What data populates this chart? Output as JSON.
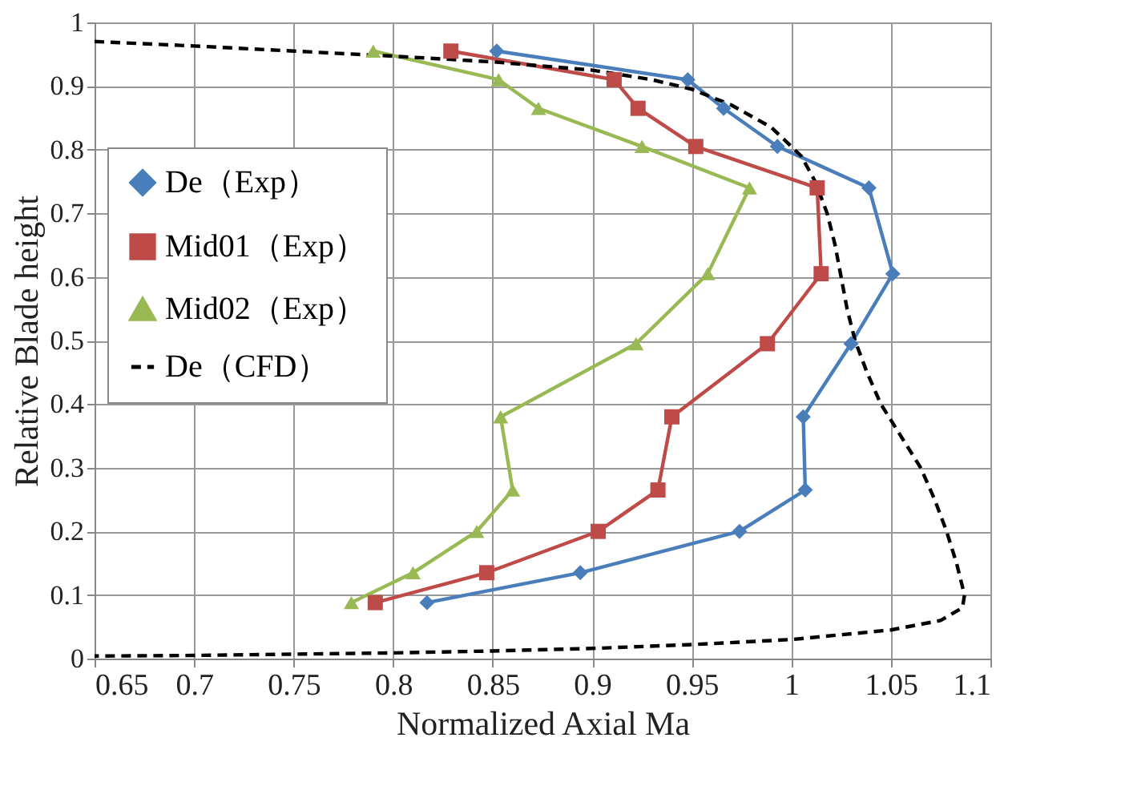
{
  "chart_data": {
    "type": "line",
    "xlabel": "Normalized  Axial Ma",
    "ylabel": "Relative Blade height",
    "xlim": [
      0.65,
      1.1
    ],
    "xticks": [
      0.65,
      0.7,
      0.75,
      0.8,
      0.85,
      0.9,
      0.95,
      1,
      1.05,
      1.1
    ],
    "ylim": [
      0,
      1
    ],
    "yticks": [
      0,
      0.1,
      0.2,
      0.3,
      0.4,
      0.5,
      0.6,
      0.7,
      0.8,
      0.9,
      1
    ],
    "grid": true,
    "legend": "top left",
    "series": [
      {
        "name": "De（Exp）",
        "color": "#4a7ebb",
        "marker": "diamond",
        "line_style": "solid",
        "x": [
          0.852,
          0.948,
          0.966,
          0.993,
          1.039,
          1.051,
          1.03,
          1.006,
          1.007,
          0.974,
          0.894,
          0.817
        ],
        "values": [
          0.955,
          0.91,
          0.865,
          0.805,
          0.74,
          0.605,
          0.495,
          0.38,
          0.265,
          0.2,
          0.135,
          0.088
        ]
      },
      {
        "name": "Mid01（Exp）",
        "color": "#be4b48",
        "marker": "square",
        "line_style": "solid",
        "x": [
          0.829,
          0.911,
          0.923,
          0.952,
          1.013,
          1.015,
          0.988,
          0.94,
          0.933,
          0.903,
          0.847,
          0.791
        ],
        "values": [
          0.955,
          0.91,
          0.865,
          0.805,
          0.74,
          0.605,
          0.495,
          0.38,
          0.265,
          0.2,
          0.135,
          0.088
        ]
      },
      {
        "name": "Mid02（Exp）",
        "color": "#98b954",
        "marker": "triangle",
        "line_style": "solid",
        "x": [
          0.79,
          0.853,
          0.873,
          0.925,
          0.979,
          0.958,
          0.922,
          0.854,
          0.86,
          0.842,
          0.81,
          0.779
        ],
        "values": [
          0.955,
          0.91,
          0.865,
          0.805,
          0.74,
          0.605,
          0.495,
          0.38,
          0.265,
          0.2,
          0.135,
          0.088
        ]
      },
      {
        "name": "De（CFD）",
        "color": "#000000",
        "marker": "none",
        "line_style": "dashed",
        "x": [
          0.65,
          0.7,
          0.75,
          0.8,
          0.85,
          0.9,
          0.93,
          0.95,
          0.97,
          0.99,
          1.005,
          1.012,
          1.018,
          1.022,
          1.025,
          1.028,
          1.032,
          1.038,
          1.045,
          1.055,
          1.065,
          1.072,
          1.078,
          1.083,
          1.087,
          1.086,
          1.075,
          1.05,
          1.0,
          0.95,
          0.9,
          0.85,
          0.8,
          0.75,
          0.7,
          0.65
        ],
        "values": [
          0.97,
          0.963,
          0.955,
          0.947,
          0.938,
          0.925,
          0.91,
          0.895,
          0.87,
          0.835,
          0.79,
          0.75,
          0.7,
          0.65,
          0.6,
          0.55,
          0.5,
          0.45,
          0.4,
          0.35,
          0.3,
          0.25,
          0.2,
          0.15,
          0.1,
          0.08,
          0.06,
          0.045,
          0.03,
          0.022,
          0.016,
          0.012,
          0.009,
          0.007,
          0.005,
          0.004
        ]
      }
    ]
  }
}
